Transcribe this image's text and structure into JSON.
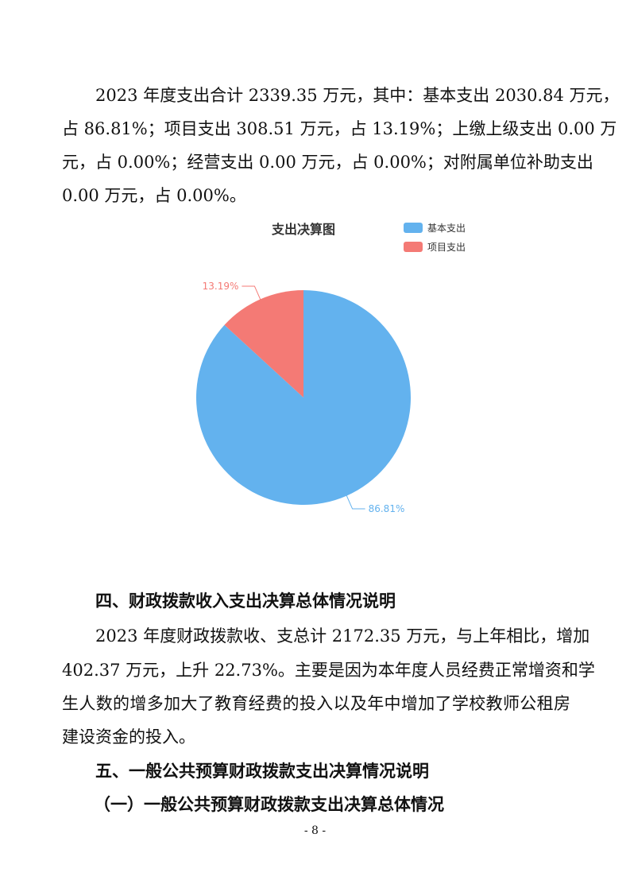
{
  "paragraph1": {
    "lines": [
      "2023 年度支出合计 2339.35 万元，其中：基本支出 2030.84 万元，",
      "占 86.81%；项目支出 308.51 万元，占 13.19%；上缴上级支出 0.00 万",
      "元，占 0.00%；经营支出 0.00 万元，占 0.00%；对附属单位补助支出",
      "0.00 万元，占 0.00%。"
    ]
  },
  "chart_data": {
    "type": "pie",
    "title": "支出决算图",
    "legend_position": "top-right",
    "categories": [
      "基本支出",
      "项目支出"
    ],
    "values": [
      86.81,
      13.19
    ],
    "data_labels": [
      "86.81%",
      "13.19%"
    ],
    "colors": [
      "#63b2ee",
      "#f47a75"
    ]
  },
  "section4": {
    "heading": "四、财政拨款收入支出决算总体情况说明",
    "lines": [
      "2023 年度财政拨款收、支总计 2172.35 万元，与上年相比，增加",
      "402.37 万元，上升 22.73%。主要是因为本年度人员经费正常增资和学",
      "生人数的增多加大了教育经费的投入以及年中增加了学校教师公租房",
      "建设资金的投入。"
    ]
  },
  "section5": {
    "heading": "五、一般公共预算财政拨款支出决算情况说明",
    "subheading": "（一）一般公共预算财政拨款支出决算总体情况"
  },
  "page_number": "- 8 -"
}
